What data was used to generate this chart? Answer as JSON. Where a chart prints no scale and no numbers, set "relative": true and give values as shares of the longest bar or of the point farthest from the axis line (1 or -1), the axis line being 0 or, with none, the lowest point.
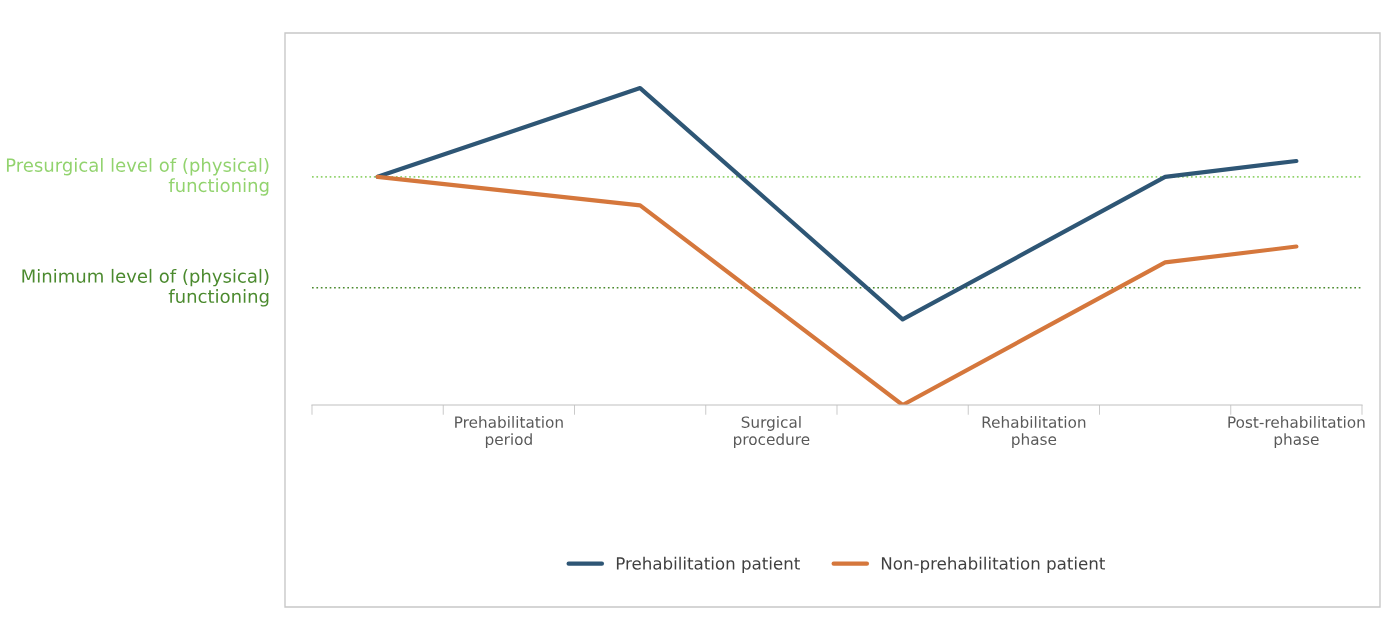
{
  "chart_data": {
    "type": "line",
    "relative": true,
    "categories": [
      null,
      "Prehabilitation period",
      null,
      "Surgical procedure",
      null,
      "Rehabilitation phase",
      null,
      "Post-rehabilitation phase"
    ],
    "series": [
      {
        "name": "Prehabilitation patient",
        "color": "#2e5675",
        "values": [
          0.72,
          0.86,
          1,
          0.635,
          0.27,
          0.495,
          0.72,
          0.77
        ]
      },
      {
        "name": "Non-prehabilitation patient",
        "color": "#d5773c",
        "values": [
          0.72,
          0.675,
          0.63,
          0.315,
          0,
          0.225,
          0.45,
          0.5
        ]
      }
    ],
    "ref_lines": [
      {
        "axis": "y",
        "value": 0.72,
        "label": "Presurgical level of (physical) functioning",
        "color": "#92d36e",
        "line_style": "dotted"
      },
      {
        "axis": "y",
        "value": 0.37,
        "label": "Minimum level of (physical) functioning",
        "color": "#4b8a2e",
        "line_style": "dotted"
      }
    ],
    "legend": "bottom",
    "grid": false,
    "marker": "none",
    "line_style": "solid"
  }
}
